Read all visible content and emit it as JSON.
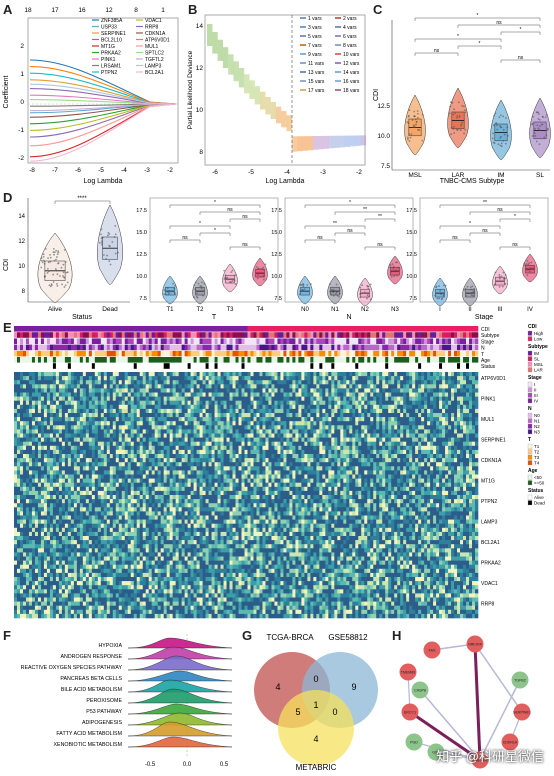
{
  "panels": {
    "a": "A",
    "b": "B",
    "c": "C",
    "d": "D",
    "e": "E",
    "f": "F",
    "g": "G",
    "h": "H"
  },
  "panelA": {
    "top_ticks": [
      "18",
      "17",
      "16",
      "12",
      "8",
      "1"
    ],
    "x_ticks": [
      "-8",
      "-7",
      "-6",
      "-5",
      "-4",
      "-3",
      "-2"
    ],
    "y_ticks": [
      "2",
      "1",
      "0",
      "-1",
      "-2"
    ],
    "xlabel": "Log Lambda",
    "ylabel": "Coefficient",
    "legend_col1": [
      "ZNF385A",
      "USP33",
      "SERPINE1",
      "BCL2L10",
      "MT1G",
      "PRKAA2",
      "PINK1",
      "LRSAM1",
      "PTPN2"
    ],
    "legend_col2": [
      "VDAC1",
      "RRP8",
      "CDKN1A",
      "ATP6V0D1",
      "MUL1",
      "SPTLC2",
      "TGFTL2",
      "LAMP3",
      "BCL2A1"
    ],
    "colors": [
      "#1f77b4",
      "#5fa8d3",
      "#e0a030",
      "#8c6bb1",
      "#d62728",
      "#2ca02c",
      "#e377c2",
      "#7f7f7f",
      "#17becf",
      "#bcbd22",
      "#9467bd",
      "#8c564b",
      "#ff7f0e",
      "#ff9896",
      "#98df8a",
      "#c5b0d5",
      "#aec7e8",
      "#f7b6d2"
    ]
  },
  "panelB": {
    "x_ticks": [
      "-6",
      "-5",
      "-4",
      "-3",
      "-2"
    ],
    "y_ticks": [
      "14",
      "12",
      "10",
      "8"
    ],
    "xlabel": "Log Lambda",
    "ylabel": "Partial Likelihood Deviance",
    "legend": [
      "1 vars",
      "2 vars",
      "3 vars",
      "4 vars",
      "5 vars",
      "6 vars",
      "7 vars",
      "8 vars",
      "9 vars",
      "10 vars",
      "11 vars",
      "12 vars",
      "13 vars",
      "14 vars",
      "15 vars",
      "16 vars",
      "17 vars",
      "18 vars"
    ]
  },
  "panelC": {
    "categories": [
      "MSL",
      "LAR",
      "IM",
      "SL"
    ],
    "y_ticks": [
      "12.5",
      "10.0",
      "7.5"
    ],
    "ylabel": "CDI",
    "xlabel": "TNBC-CMS Subtype",
    "sig": [
      "*",
      "ns",
      "*",
      "*",
      "*",
      "ns",
      "ns"
    ],
    "colors": [
      "#f4a261",
      "#e76f51",
      "#6aaed6",
      "#a98bc7"
    ]
  },
  "panelD1": {
    "categories": [
      "Alive",
      "Dead"
    ],
    "y_ticks": [
      "14",
      "12",
      "10",
      "8"
    ],
    "ylabel": "CDI",
    "xlabel": "Status",
    "sig": "****"
  },
  "panelD2": {
    "categories": [
      "T1",
      "T2",
      "T3",
      "T4"
    ],
    "y_ticks": [
      "17.5",
      "15.0",
      "12.5",
      "10.0",
      "7.5"
    ],
    "xlabel": "T",
    "sig": [
      "*",
      "ns",
      "ns",
      "*",
      "*",
      "ns",
      "ns"
    ]
  },
  "panelD3": {
    "categories": [
      "N0",
      "N1",
      "N2",
      "N3"
    ],
    "y_ticks": [
      "17.5",
      "15.0",
      "12.5",
      "10.0",
      "7.5"
    ],
    "xlabel": "N",
    "sig": [
      "*",
      "**",
      "**",
      "**",
      "ns",
      "ns",
      "ns"
    ]
  },
  "panelD4": {
    "categories": [
      "I",
      "II",
      "III",
      "IV"
    ],
    "y_ticks": [
      "17.5",
      "15.0",
      "12.5",
      "10.0",
      "7.5"
    ],
    "xlabel": "Stage",
    "sig": [
      "**",
      "ns",
      "*",
      "*",
      "ns",
      "ns",
      "ns"
    ]
  },
  "panelE": {
    "annot_rows": [
      "CDI",
      "Subtype",
      "Stage",
      "N",
      "T",
      "Age",
      "Status"
    ],
    "genes": [
      "ATP6V0D1",
      "PINK1",
      "MUL1",
      "SERPINE1",
      "CDKN1A",
      "MT1G",
      "PTPN2",
      "LAMP3",
      "BCL2A1",
      "PRKAA2",
      "VDAC1",
      "RRP8"
    ],
    "legend": {
      "cdi_title": "CDI",
      "cdi": [
        "High",
        "Low"
      ],
      "subtype_title": "Subtype",
      "subtype": [
        "IM",
        "SL",
        "MSL",
        "LAR"
      ],
      "stage_title": "Stage",
      "stage": [
        "I",
        "II",
        "III",
        "IV"
      ],
      "n_title": "N",
      "n": [
        "N0",
        "N1",
        "N2",
        "N3"
      ],
      "t_title": "T",
      "t": [
        "T1",
        "T2",
        "T3",
        "T4"
      ],
      "age_title": "Age",
      "age": [
        "<50",
        ">=50"
      ],
      "status_title": "Status",
      "status": [
        "Alive",
        "Dead"
      ]
    }
  },
  "panelF": {
    "pathways": [
      "HYPOXIA",
      "ANDROGEN RESPONSE",
      "REACTIVE OXYGEN SPECIES PATHWAY",
      "PANCREAS BETA CELLS",
      "BILE ACID METABOLISM",
      "PEROXISOME",
      "P53 PATHWAY",
      "ADIPOGENESIS",
      "FATTY ACID METABOLISM",
      "XENOBIOTIC METABOLISM"
    ],
    "x_ticks": [
      "-0.5",
      "0.0",
      "0.5"
    ],
    "colors": [
      "#c71585",
      "#c03ea8",
      "#7b6cc9",
      "#2e86c1",
      "#1aa3a3",
      "#1e9b6a",
      "#3aa63a",
      "#8fb82f",
      "#d59b2a",
      "#e2663b"
    ]
  },
  "panelG": {
    "sets": [
      "TCGA-BRCA",
      "GSE58812",
      "METABRIC"
    ],
    "counts": {
      "a_only": "4",
      "ab": "0",
      "b_only": "9",
      "ac": "5",
      "abc": "1",
      "bc": "0",
      "c_only": "4"
    }
  },
  "panelH": {
    "nodes": [
      "FAS",
      "NRF2FA",
      "TMEM89",
      "CASP8",
      "ERCC1",
      "TGFB2",
      "PGD",
      "SERPINE1",
      "CDKN1A",
      "GSS",
      "MAP4K4"
    ]
  },
  "watermark": "知乎 @科研星微信"
}
